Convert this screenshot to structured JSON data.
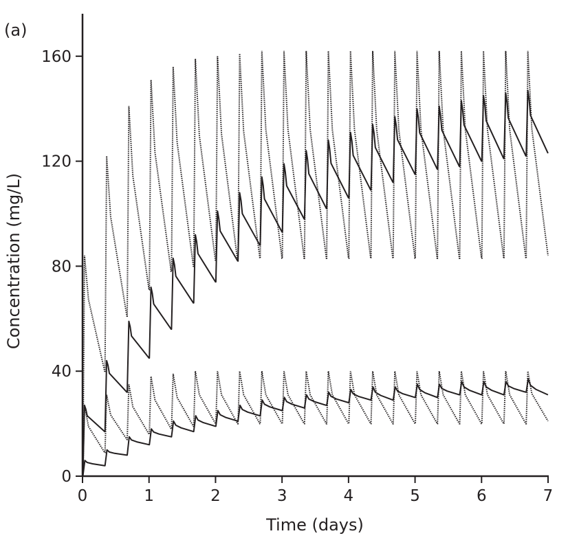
{
  "chart_data": {
    "type": "line",
    "panel_label": "(a)",
    "xlabel": "Time (days)",
    "ylabel": "Concentration (mg/L)",
    "xlim": [
      0,
      7
    ],
    "ylim": [
      0,
      175
    ],
    "x_ticks": [
      "0",
      "1",
      "2",
      "3",
      "4",
      "5",
      "6",
      "7"
    ],
    "y_ticks": [
      "0",
      "40",
      "80",
      "120",
      "160"
    ],
    "grid": false,
    "dose_interval_days": 0.3333,
    "series": [
      {
        "name": "upper-dotted",
        "style": "dotted",
        "peaks": [
          84,
          122,
          141,
          151,
          156,
          159,
          160,
          161,
          162,
          162,
          162,
          162,
          162,
          162,
          162,
          162,
          162,
          162,
          162,
          162,
          162
        ],
        "troughs": [
          40,
          61,
          71,
          78,
          80,
          82,
          82,
          83,
          83,
          83,
          83,
          83,
          83,
          83,
          83,
          83,
          83,
          83,
          83,
          83,
          84
        ]
      },
      {
        "name": "upper-solid",
        "style": "solid",
        "peaks": [
          27,
          44,
          59,
          72,
          83,
          92,
          101,
          108,
          114,
          119,
          124,
          128,
          131,
          134,
          137,
          140,
          141,
          143,
          145,
          146,
          147
        ],
        "troughs": [
          17,
          32,
          45,
          56,
          66,
          74,
          82,
          88,
          93,
          98,
          102,
          106,
          109,
          112,
          115,
          117,
          118,
          120,
          121,
          122,
          123
        ]
      },
      {
        "name": "lower-dotted",
        "style": "dotted",
        "peaks": [
          27,
          31,
          35,
          38,
          39,
          40,
          40,
          40,
          40,
          40,
          40,
          40,
          40,
          40,
          40,
          40,
          40,
          40,
          40,
          40,
          40
        ],
        "troughs": [
          9,
          14,
          16,
          18,
          19,
          20,
          20,
          20,
          20,
          20,
          20,
          20,
          20,
          20,
          20,
          20,
          20,
          20,
          20,
          20,
          21
        ]
      },
      {
        "name": "lower-solid",
        "style": "solid",
        "peaks": [
          6,
          10,
          15,
          18,
          21,
          23,
          25,
          27,
          29,
          30,
          31,
          32,
          33,
          34,
          34,
          35,
          35,
          36,
          36,
          36,
          37
        ],
        "troughs": [
          4,
          8,
          12,
          15,
          17,
          19,
          21,
          23,
          25,
          26,
          27,
          28,
          29,
          29,
          30,
          30,
          31,
          31,
          31,
          32,
          31
        ]
      }
    ]
  }
}
